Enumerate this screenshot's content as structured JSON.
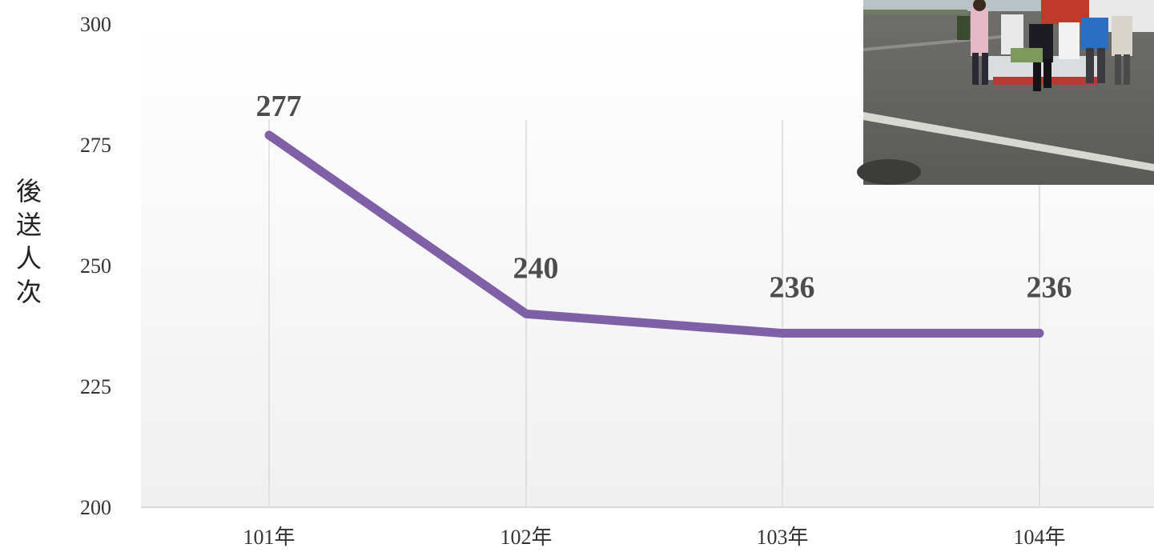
{
  "chart_data": {
    "type": "line",
    "categories": [
      "101年",
      "102年",
      "103年",
      "104年"
    ],
    "series": [
      {
        "values": [
          277,
          240,
          236,
          236
        ]
      }
    ],
    "data_labels": [
      "277",
      "240",
      "236",
      "236"
    ],
    "ylabel": "後送人次",
    "xlabel": "",
    "title": "",
    "ylim": [
      200,
      300
    ],
    "yticks": [
      "200",
      "225",
      "250",
      "275",
      "300"
    ],
    "grid": "vertical",
    "legend": "none",
    "colors": {
      "line": "#7f5fa6",
      "grid": "#d9d9d9",
      "axis": "#d9d9d9",
      "plot_bg_top": "#ffffff",
      "plot_bg_bottom": "#f0f0f0"
    }
  },
  "photo": {
    "icon": "helicopter-medevac-photo"
  }
}
